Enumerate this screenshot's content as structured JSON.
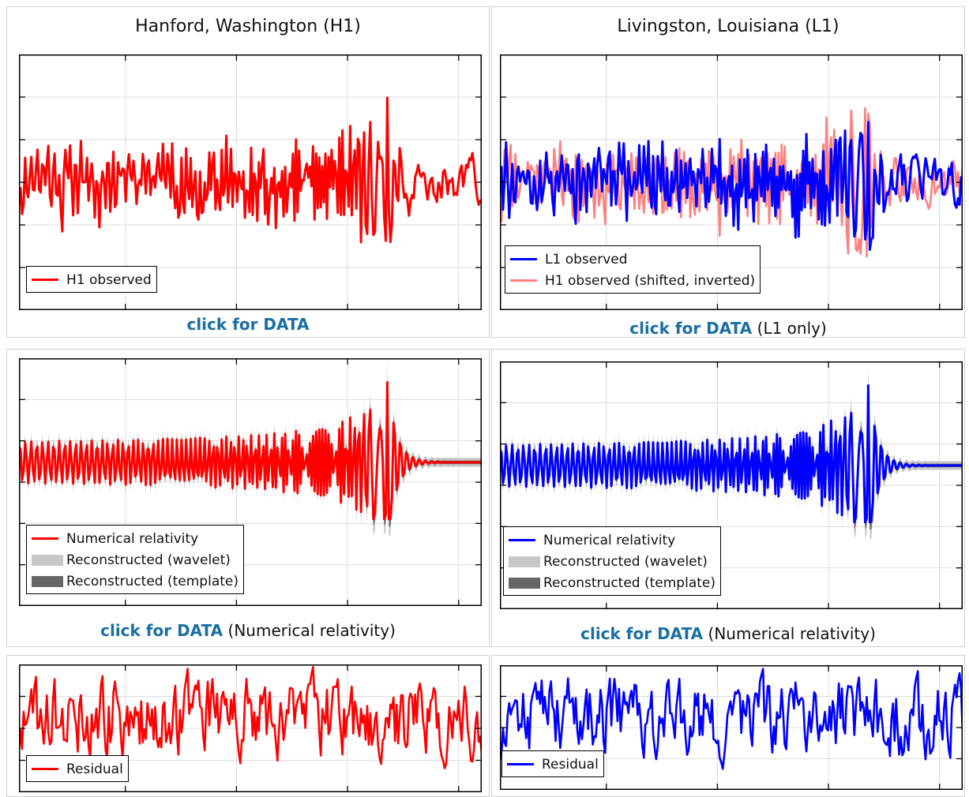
{
  "columns": {
    "h1_title": "Hanford, Washington (H1)",
    "l1_title": "Livingston, Louisiana (L1)"
  },
  "captions": {
    "h1_observed": {
      "link": "click for DATA",
      "note": ""
    },
    "l1_observed": {
      "link": "click for DATA",
      "note": " (L1 only)"
    },
    "h1_nr": {
      "link": "click for DATA",
      "note": " (Numerical relativity)"
    },
    "l1_nr": {
      "link": "click for DATA",
      "note": " (Numerical relativity)"
    }
  },
  "legends": {
    "h1_observed": "H1 observed",
    "l1_observed": "L1 observed",
    "h1_shifted": "H1 observed (shifted, inverted)",
    "numerical_relativity": "Numerical relativity",
    "wavelet": "Reconstructed (wavelet)",
    "template": "Reconstructed (template)",
    "residual": "Residual"
  },
  "colors": {
    "h1": "#ff0000",
    "l1": "#0000ff",
    "h1_shifted": "#ff7f7f",
    "wavelet_band": "#c8c8c8",
    "template_band": "#666666",
    "link": "#1a6fa3"
  },
  "chart_data": [
    {
      "type": "line",
      "panel": "H1 observed",
      "series": [
        {
          "name": "H1 observed",
          "color": "#ff0000"
        }
      ],
      "grid": true,
      "legend": "bottom-left"
    },
    {
      "type": "line",
      "panel": "L1 observed",
      "series": [
        {
          "name": "L1 observed",
          "color": "#0000ff"
        },
        {
          "name": "H1 observed (shifted, inverted)",
          "color": "#ff7f7f"
        }
      ],
      "grid": true,
      "legend": "bottom-left"
    },
    {
      "type": "line",
      "panel": "H1 reconstruction",
      "series": [
        {
          "name": "Numerical relativity",
          "color": "#ff0000"
        },
        {
          "name": "Reconstructed (wavelet)",
          "color": "#c8c8c8"
        },
        {
          "name": "Reconstructed (template)",
          "color": "#666666"
        }
      ],
      "grid": true,
      "legend": "bottom-left"
    },
    {
      "type": "line",
      "panel": "L1 reconstruction",
      "series": [
        {
          "name": "Numerical relativity",
          "color": "#0000ff"
        },
        {
          "name": "Reconstructed (wavelet)",
          "color": "#c8c8c8"
        },
        {
          "name": "Reconstructed (template)",
          "color": "#666666"
        }
      ],
      "grid": true,
      "legend": "bottom-left"
    },
    {
      "type": "line",
      "panel": "H1 residual",
      "series": [
        {
          "name": "Residual",
          "color": "#ff0000"
        }
      ],
      "grid": true,
      "legend": "bottom-left"
    },
    {
      "type": "line",
      "panel": "L1 residual",
      "series": [
        {
          "name": "Residual",
          "color": "#0000ff"
        }
      ],
      "grid": true,
      "legend": "bottom-left"
    }
  ]
}
